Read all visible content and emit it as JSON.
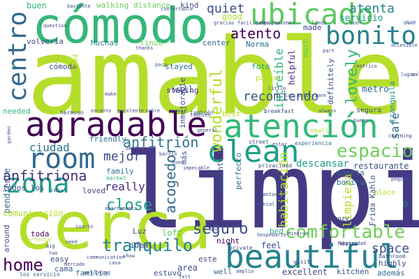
{
  "palette": {
    "purple": "#440154",
    "indigo": "#3b528b",
    "blue": "#31688e",
    "teal": "#21918c",
    "green": "#35b779",
    "lime": "#5ec962",
    "yellow": "#b5de2b",
    "bright": "#dde318",
    "pale": "#90d743"
  },
  "words": [
    {
      "text": "amable",
      "color": "#b5de2b"
    },
    {
      "text": "limpio",
      "color": "#3e4a89"
    },
    {
      "text": "cerca",
      "color": "#b5de2b"
    },
    {
      "text": "cómodo",
      "color": "#35b779"
    },
    {
      "text": "agradable",
      "color": "#440154"
    },
    {
      "text": "beautiful",
      "color": "#26828e"
    },
    {
      "text": "atención",
      "color": "#35b779"
    },
    {
      "text": "ubicado",
      "color": "#5ec962"
    },
    {
      "text": "clean",
      "color": "#1f9e89"
    },
    {
      "text": "room",
      "color": "#31688e"
    },
    {
      "text": "bonito",
      "color": "#26828e"
    },
    {
      "text": "centro",
      "color": "#31688e"
    },
    {
      "text": "zona",
      "color": "#1f9e89"
    },
    {
      "text": "espacio",
      "color": "#6ece58"
    },
    {
      "text": "comfortable",
      "color": "#6ece58"
    },
    {
      "text": "tranquilo",
      "color": "#26828e"
    },
    {
      "text": "home",
      "color": "#440154"
    },
    {
      "text": "close",
      "color": "#1f9e89"
    },
    {
      "text": "anfitriona",
      "color": "#472d7b"
    },
    {
      "text": "acogedor",
      "color": "#31688e"
    },
    {
      "text": "wonderful",
      "color": "#b5de2b"
    },
    {
      "text": "seguro",
      "color": "#3b528b"
    },
    {
      "text": "atenta",
      "color": "#26828e"
    },
    {
      "text": "atento",
      "color": "#440154"
    },
    {
      "text": "lovely",
      "color": "#35b779"
    },
    {
      "text": "anfitrión",
      "color": "#2c728e"
    },
    {
      "text": "quiet",
      "color": "#3e4a89"
    },
    {
      "text": "recomiendo",
      "color": "#3b528b"
    },
    {
      "text": "ciudad",
      "color": "#2c728e"
    },
    {
      "text": "mejor",
      "color": "#3e4a89"
    },
    {
      "text": "increíble",
      "color": "#35b779"
    },
    {
      "text": "habitación",
      "color": "#b5de2b"
    },
    {
      "text": "limpieza",
      "color": "#b5de2b"
    },
    {
      "text": "really",
      "color": "#472d7b"
    },
    {
      "text": "space",
      "color": "#3b528b"
    },
    {
      "text": "servicio",
      "color": "#1f9e89"
    },
    {
      "text": "metro",
      "color": "#31688e"
    },
    {
      "text": "safe",
      "color": "#2c728e"
    },
    {
      "text": "descansar",
      "color": "#1f9e89"
    },
    {
      "text": "restaurante",
      "color": "#3b528b"
    },
    {
      "text": "pendiente",
      "color": "#31688e"
    },
    {
      "text": "buen",
      "color": "#35b779"
    },
    {
      "text": "walking distance",
      "color": "#6ece58"
    },
    {
      "text": "kind",
      "color": "#3e4a89"
    },
    {
      "text": "volvería",
      "color": "#3e4a89"
    },
    {
      "text": "Muchas",
      "color": "#26828e"
    },
    {
      "text": "lindo",
      "color": "#6ece58"
    },
    {
      "text": "center",
      "color": "#31688e"
    },
    {
      "text": "good",
      "color": "#b5de2b"
    },
    {
      "text": "made",
      "color": "#3e4a89"
    },
    {
      "text": "Norma",
      "color": "#2c728e"
    },
    {
      "text": "much",
      "color": "#5ec962"
    },
    {
      "text": "cómoda",
      "color": "#3e4a89"
    },
    {
      "text": "stayed",
      "color": "#31688e"
    },
    {
      "text": "foto",
      "color": "#1f9e89"
    },
    {
      "text": "parte",
      "color": "#b5de2b"
    },
    {
      "text": "helpful",
      "color": "#472d7b"
    },
    {
      "text": "definitely",
      "color": "#3b528b"
    },
    {
      "text": "hospitalidad",
      "color": "#b5de2b"
    },
    {
      "text": "staying",
      "color": "#472d7b"
    },
    {
      "text": "will",
      "color": "#3b528b"
    },
    {
      "text": "inmejorable",
      "color": "#3e4a89"
    },
    {
      "text": "best",
      "color": "#b5de2b"
    },
    {
      "text": "segura",
      "color": "#3b528b"
    },
    {
      "text": "tranquila",
      "color": "#21918c"
    },
    {
      "text": "needed",
      "color": "#35b779"
    },
    {
      "text": "friendly",
      "color": "#2c728e"
    },
    {
      "text": "todos los",
      "color": "#3e4a89"
    },
    {
      "text": "family",
      "color": "#2c728e"
    },
    {
      "text": "loved",
      "color": "#3e4a89"
    },
    {
      "text": "cuenta",
      "color": "#31688e"
    },
    {
      "text": "bonita",
      "color": "#2c728e"
    },
    {
      "text": "Frida Kahlo",
      "color": "#3b528b"
    },
    {
      "text": "comunicación",
      "color": "#b5de2b"
    },
    {
      "text": "around",
      "color": "#3e4a89"
    },
    {
      "text": "toda",
      "color": "#440154"
    },
    {
      "text": "Luz",
      "color": "#3b528b"
    },
    {
      "text": "loft",
      "color": "#5ec962"
    },
    {
      "text": "night",
      "color": "#440154"
    },
    {
      "text": "bed",
      "color": "#35b779"
    },
    {
      "text": "feel",
      "color": "#3e4a89"
    },
    {
      "text": "ideal",
      "color": "#3e4a89"
    },
    {
      "text": "easy",
      "color": "#3e4a89"
    },
    {
      "text": "cama",
      "color": "#3b528b"
    },
    {
      "text": "este",
      "color": "#3e4a89"
    },
    {
      "text": "area",
      "color": "#3e4a89"
    },
    {
      "text": "estuvo",
      "color": "#3b528b"
    },
    {
      "text": "well",
      "color": "#31688e"
    },
    {
      "text": "excellent",
      "color": "#3e4a89"
    },
    {
      "text": "kitchen",
      "color": "#3b528b"
    },
    {
      "text": "highly",
      "color": "#3e4a89"
    },
    {
      "text": "además",
      "color": "#31688e"
    },
    {
      "text": "familia",
      "color": "#2c728e"
    },
    {
      "text": "momento",
      "color": "#3b528b"
    },
    {
      "text": "perfecto",
      "color": "#2c728e"
    },
    {
      "text": "más",
      "color": "#3e4a89"
    },
    {
      "text": "o",
      "color": "#2c728e"
    },
    {
      "text": "también",
      "color": "#31688e"
    },
    {
      "text": "hermoso",
      "color": "#3e4a89"
    },
    {
      "text": "privacidad",
      "color": "#3e4a89"
    },
    {
      "text": "breakfast",
      "color": "#3e4a89"
    },
    {
      "text": "experiencia",
      "color": "#31688e"
    },
    {
      "text": "small",
      "color": "#b5de2b"
    },
    {
      "text": "cozy",
      "color": "#3e4a89"
    },
    {
      "text": "place",
      "color": "#b5de2b"
    },
    {
      "text": "bathroom",
      "color": "#3e4a89"
    },
    {
      "text": "market",
      "color": "#35b779"
    },
    {
      "text": "street",
      "color": "#3b528b"
    },
    {
      "text": "México",
      "color": "#3e4a89"
    },
    {
      "text": "visit",
      "color": "#3e4a89"
    },
    {
      "text": "private",
      "color": "#3e4a89"
    },
    {
      "text": "los servicio",
      "color": "#31688e"
    },
    {
      "text": "communication",
      "color": "#3e4a89"
    },
    {
      "text": "los anfitrione",
      "color": "#3e4a89"
    },
    {
      "text": "little",
      "color": "#3e4a89"
    },
    {
      "text": "bueno",
      "color": "#3e4a89"
    },
    {
      "text": "céntrico",
      "color": "#3e4a89"
    },
    {
      "text": "accesible",
      "color": "#3e4a89"
    },
    {
      "text": "genial",
      "color": "#3e4a89"
    },
    {
      "text": "general",
      "color": "#3e4a89"
    },
    {
      "text": "gracias",
      "color": "#3e4a89"
    },
    {
      "text": "perfecta",
      "color": "#b5de2b"
    },
    {
      "text": "mercado",
      "color": "#3e4a89"
    },
    {
      "text": "ir",
      "color": "#3e4a89"
    },
    {
      "text": "cuarto",
      "color": "#3e4a89"
    },
    {
      "text": "fantastic",
      "color": "#3e4a89"
    },
    {
      "text": "Minerva",
      "color": "#3e4a89"
    },
    {
      "text": "seguridad",
      "color": "#3e4a89"
    },
    {
      "text": "pequeño",
      "color": "#3e4a89"
    },
    {
      "text": "estar",
      "color": "#3e4a89"
    },
    {
      "text": "charming",
      "color": "#3e4a89"
    },
    {
      "text": "bastante",
      "color": "#3e4a89"
    },
    {
      "text": "confortable",
      "color": "#3e4a89"
    },
    {
      "text": "question",
      "color": "#3e4a89"
    },
    {
      "text": "facilidades",
      "color": "#3e4a89"
    },
    {
      "text": "equipamiento",
      "color": "#3e4a89"
    },
    {
      "text": "linda",
      "color": "#3e4a89"
    },
    {
      "text": "bien",
      "color": "#3e4a89"
    },
    {
      "text": "UNAM",
      "color": "#3e4a89"
    },
    {
      "text": "part",
      "color": "#3e4a89"
    },
    {
      "text": "lugar",
      "color": "#3e4a89"
    },
    {
      "text": "walk",
      "color": "#3e4a89"
    },
    {
      "text": "thanks",
      "color": "#3e4a89"
    },
    {
      "text": "poco",
      "color": "#3e4a89"
    },
    {
      "text": "make",
      "color": "#3e4a89"
    },
    {
      "text": "encanto",
      "color": "#3e4a89"
    },
    {
      "text": "excelente",
      "color": "#3e4a89"
    },
    {
      "text": "people",
      "color": "#3e4a89"
    },
    {
      "text": "sobre",
      "color": "#3e4a89"
    },
    {
      "text": "always",
      "color": "#3e4a89"
    },
    {
      "text": "garden",
      "color": "#3e4a89"
    },
    {
      "text": "desde",
      "color": "#3e4a89"
    },
    {
      "text": "barrio",
      "color": "#3e4a89"
    },
    {
      "text": "even",
      "color": "#3e4a89"
    },
    {
      "text": "impecable",
      "color": "#3e4a89"
    },
    {
      "text": "día",
      "color": "#3e4a89"
    },
    {
      "text": "apartamento",
      "color": "#3e4a89"
    },
    {
      "text": "bed",
      "color": "#3e4a89"
    },
    {
      "text": "hospedarte",
      "color": "#3e4a89"
    },
    {
      "text": "welcoming",
      "color": "#3e4a89"
    },
    {
      "text": "amplio",
      "color": "#3e4a89"
    },
    {
      "text": "big",
      "color": "#3e4a89"
    },
    {
      "text": "two",
      "color": "#3e4a89"
    },
    {
      "text": "need",
      "color": "#3e4a89"
    },
    {
      "text": "casa",
      "color": "#3e4a89"
    },
    {
      "text": "show",
      "color": "#3e4a89"
    },
    {
      "text": "felt",
      "color": "#3e4a89"
    },
    {
      "text": "también",
      "color": "#3e4a89"
    }
  ]
}
